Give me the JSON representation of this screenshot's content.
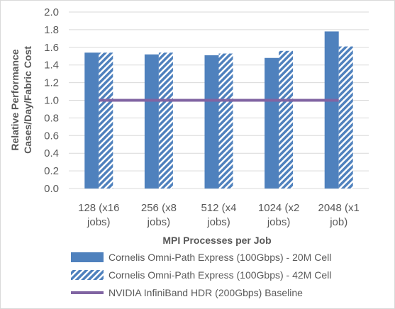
{
  "chart_data": {
    "type": "bar",
    "categories": [
      [
        "128 (x16",
        "jobs)"
      ],
      [
        "256 (x8",
        "jobs)"
      ],
      [
        "512 (x4",
        "jobs)"
      ],
      [
        "1024 (x2",
        "jobs)"
      ],
      [
        "2048 (x1",
        "job)"
      ]
    ],
    "series": [
      {
        "name": "Cornelis Omni-Path Express (100Gbps) - 20M Cell",
        "values": [
          1.54,
          1.52,
          1.51,
          1.48,
          1.78
        ],
        "color": "#4f81bd",
        "pattern": "solid"
      },
      {
        "name": "Cornelis Omni-Path Express (100Gbps) - 42M Cell",
        "values": [
          1.54,
          1.54,
          1.53,
          1.56,
          1.61
        ],
        "color": "#4f81bd",
        "pattern": "diagonal-hatch"
      }
    ],
    "baseline": {
      "name": "NVIDIA InfiniBand HDR (200Gbps) Baseline",
      "value": 1.0,
      "color": "#8064a2"
    },
    "xlabel": "MPI Processes per Job",
    "ylabel": [
      "Relative Performance",
      "Cases/Day/Fabric Cost"
    ],
    "ylim": [
      0,
      2.0
    ],
    "yticks": [
      "0.0",
      "0.2",
      "0.4",
      "0.6",
      "0.8",
      "1.0",
      "1.2",
      "1.4",
      "1.6",
      "1.8",
      "2.0"
    ],
    "grid": true,
    "legend_position": "bottom"
  }
}
